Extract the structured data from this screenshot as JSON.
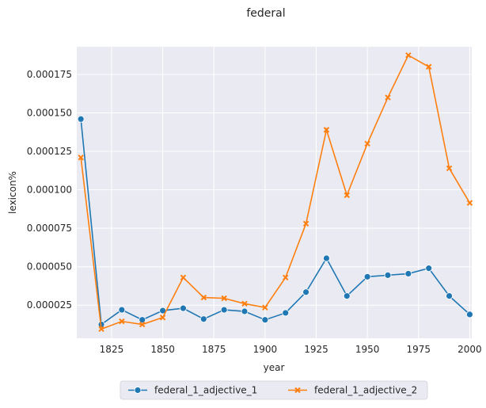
{
  "chart_data": {
    "type": "line",
    "title": "federal",
    "xlabel": "year",
    "ylabel": "lexicon%",
    "xlim": [
      1808,
      2001
    ],
    "ylim": [
      3.5e-06,
      0.000193
    ],
    "xticks": [
      1825,
      1850,
      1875,
      1900,
      1925,
      1950,
      1975,
      2000
    ],
    "yticks": [
      2.5e-05,
      5e-05,
      7.5e-05,
      0.0001,
      0.000125,
      0.00015,
      0.000175
    ],
    "xtick_labels": [
      "1825",
      "1850",
      "1875",
      "1900",
      "1925",
      "1950",
      "1975",
      "2000"
    ],
    "ytick_labels": [
      "0.000025",
      "0.000050",
      "0.000075",
      "0.000100",
      "0.000125",
      "0.000150",
      "0.000175"
    ],
    "grid": true,
    "legend_position": "bottom-center",
    "x": [
      1810,
      1820,
      1830,
      1840,
      1850,
      1860,
      1870,
      1880,
      1890,
      1900,
      1910,
      1920,
      1930,
      1940,
      1950,
      1960,
      1970,
      1980,
      1990,
      2000
    ],
    "series": [
      {
        "name": "federal_1_adjective_1",
        "color": "#1f77b4",
        "marker": "circle",
        "values": [
          0.000146,
          1.25e-05,
          2.2e-05,
          1.55e-05,
          2.15e-05,
          2.3e-05,
          1.6e-05,
          2.2e-05,
          2.1e-05,
          1.55e-05,
          2e-05,
          3.35e-05,
          5.55e-05,
          3.1e-05,
          4.35e-05,
          4.45e-05,
          4.55e-05,
          4.9e-05,
          3.1e-05,
          1.9e-05
        ]
      },
      {
        "name": "federal_1_adjective_2",
        "color": "#ff7f0e",
        "marker": "x",
        "values": [
          0.000121,
          9.5e-06,
          1.45e-05,
          1.25e-05,
          1.7e-05,
          4.3e-05,
          3e-05,
          2.95e-05,
          2.6e-05,
          2.35e-05,
          4.3e-05,
          7.8e-05,
          0.000139,
          9.65e-05,
          0.00013,
          0.00016,
          0.0001875,
          0.00018,
          0.000114,
          9.15e-05
        ]
      }
    ]
  }
}
